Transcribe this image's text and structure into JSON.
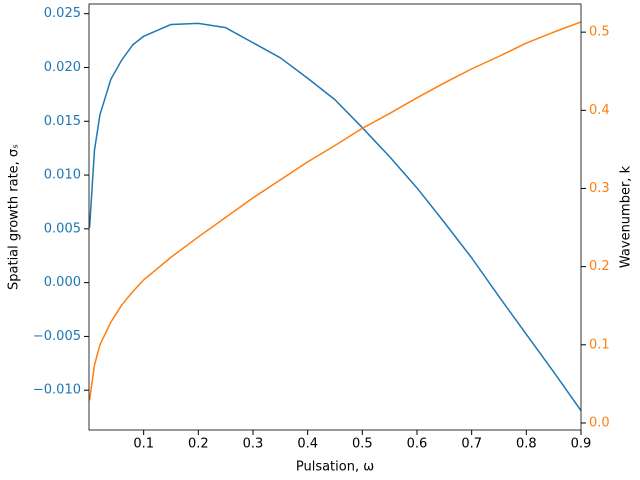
{
  "chart_data": {
    "type": "line",
    "x_label": "Pulsation, ω",
    "y_label": "Spatial growth rate, σₛ",
    "y2_label": "Wavenumber, k",
    "x": [
      0.001,
      0.01,
      0.02,
      0.04,
      0.06,
      0.08,
      0.1,
      0.15,
      0.2,
      0.25,
      0.3,
      0.35,
      0.4,
      0.45,
      0.5,
      0.55,
      0.6,
      0.65,
      0.7,
      0.75,
      0.8,
      0.85,
      0.9
    ],
    "series": [
      {
        "name": "Spatial growth rate",
        "color": "#1f77b4",
        "axis": "y",
        "values": [
          0.0051,
          0.0123,
          0.0156,
          0.0189,
          0.0207,
          0.0221,
          0.0229,
          0.024,
          0.0241,
          0.0237,
          0.0223,
          0.0209,
          0.019,
          0.017,
          0.0144,
          0.0117,
          0.0088,
          0.0056,
          0.0023,
          -0.0013,
          -0.0048,
          -0.0083,
          -0.0119
        ]
      },
      {
        "name": "Wavenumber",
        "color": "#ff7f0e",
        "axis": "y2",
        "values": [
          0.029,
          0.074,
          0.1,
          0.129,
          0.151,
          0.168,
          0.183,
          0.212,
          0.238,
          0.263,
          0.288,
          0.311,
          0.334,
          0.355,
          0.377,
          0.396,
          0.416,
          0.435,
          0.453,
          0.469,
          0.486,
          0.5,
          0.513
        ]
      }
    ],
    "xlim": [
      0.0,
      0.9
    ],
    "xticks": [
      0.1,
      0.2,
      0.3,
      0.4,
      0.5,
      0.6,
      0.7,
      0.8,
      0.9
    ],
    "ylim": [
      -0.0137,
      0.0259
    ],
    "yticks": [
      {
        "value": -0.01,
        "label": "−0.010"
      },
      {
        "value": -0.005,
        "label": "−0.005"
      },
      {
        "value": 0,
        "label": "0.000"
      },
      0.005,
      {
        "value": 0.01,
        "label": "0.010"
      },
      0.015,
      {
        "value": 0.02,
        "label": "0.020"
      },
      0.025
    ],
    "y2lim": [
      -0.009,
      0.536
    ],
    "y2ticks": [
      {
        "value": 0,
        "label": "0.0"
      },
      0.1,
      0.2,
      0.3,
      0.4,
      0.5
    ]
  }
}
